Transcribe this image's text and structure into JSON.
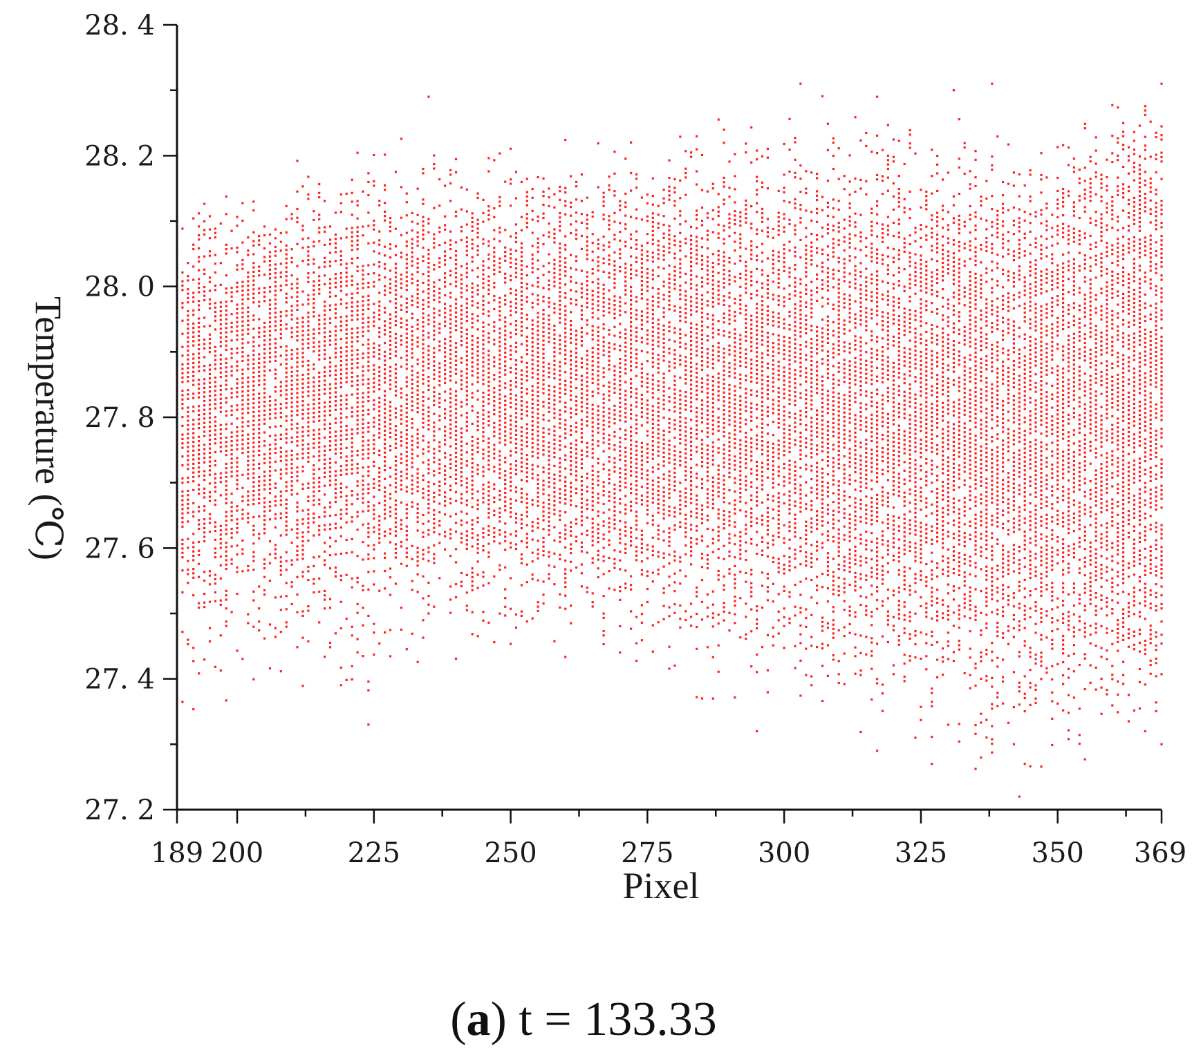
{
  "chart_data": {
    "type": "scatter",
    "title": "",
    "xlabel": "Pixel",
    "ylabel": "Temperature (℃)",
    "xlim": [
      189,
      369
    ],
    "ylim": [
      27.2,
      28.4
    ],
    "x_ticks": [
      189,
      200,
      225,
      250,
      275,
      300,
      325,
      350,
      369
    ],
    "y_ticks": [
      27.2,
      27.4,
      27.6,
      27.8,
      28.0,
      28.2,
      28.4
    ],
    "y_tick_labels": [
      "27. 2",
      "27. 4",
      "27. 6",
      "27. 8",
      "28. 0",
      "28. 2",
      "28. 4"
    ],
    "grid": false,
    "legend": "none",
    "marker_color": "#ff2020",
    "series": [
      {
        "x_range": [
          189,
          369
        ],
        "pixel_step": 1,
        "value_step": 0.0067,
        "dense_band_by_x": [
          {
            "x": 189,
            "low": 27.6,
            "high": 28.02
          },
          {
            "x": 225,
            "low": 27.62,
            "high": 28.08
          },
          {
            "x": 250,
            "low": 27.6,
            "high": 28.1
          },
          {
            "x": 275,
            "low": 27.58,
            "high": 28.1
          },
          {
            "x": 300,
            "low": 27.56,
            "high": 28.1
          },
          {
            "x": 325,
            "low": 27.5,
            "high": 28.1
          },
          {
            "x": 350,
            "low": 27.46,
            "high": 28.12
          },
          {
            "x": 369,
            "low": 27.44,
            "high": 28.22
          }
        ],
        "envelope_by_x": [
          {
            "x": 189,
            "min": 27.29,
            "max": 28.15
          },
          {
            "x": 225,
            "min": 27.33,
            "max": 28.24
          },
          {
            "x": 250,
            "min": 27.42,
            "max": 28.24
          },
          {
            "x": 275,
            "min": 27.37,
            "max": 28.26
          },
          {
            "x": 300,
            "min": 27.32,
            "max": 28.31
          },
          {
            "x": 325,
            "min": 27.27,
            "max": 28.3
          },
          {
            "x": 343,
            "min": 27.22,
            "max": 28.27
          },
          {
            "x": 369,
            "min": 27.3,
            "max": 28.31
          }
        ]
      }
    ],
    "outliers": [
      {
        "x": 224,
        "y": 27.33
      },
      {
        "x": 235,
        "y": 28.29
      },
      {
        "x": 287,
        "y": 27.37
      },
      {
        "x": 295,
        "y": 27.32
      },
      {
        "x": 303,
        "y": 28.31
      },
      {
        "x": 317,
        "y": 27.29
      },
      {
        "x": 317,
        "y": 28.29
      },
      {
        "x": 324,
        "y": 27.31
      },
      {
        "x": 327,
        "y": 27.27
      },
      {
        "x": 331,
        "y": 28.3
      },
      {
        "x": 338,
        "y": 28.31
      },
      {
        "x": 342,
        "y": 27.3
      },
      {
        "x": 343,
        "y": 27.22
      },
      {
        "x": 344,
        "y": 27.27
      },
      {
        "x": 366,
        "y": 27.32
      },
      {
        "x": 369,
        "y": 28.31
      },
      {
        "x": 369,
        "y": 27.3
      }
    ]
  },
  "caption": {
    "label": "a",
    "text": " t = 133.33"
  }
}
